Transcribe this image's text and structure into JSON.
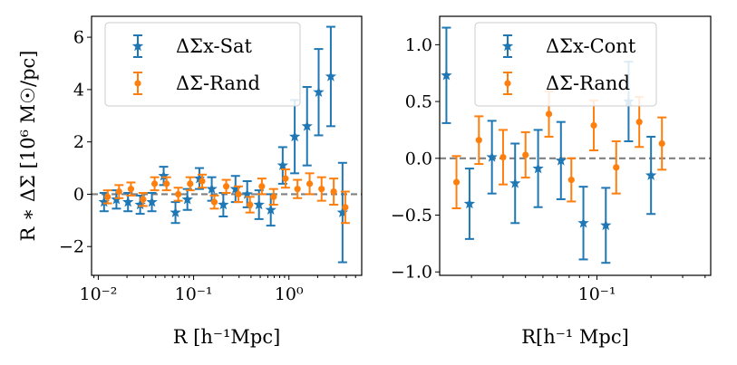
{
  "colors": {
    "sat": "#1f77b4",
    "rand": "#ff7f0e",
    "zero_line": "#808080"
  },
  "chart_data": [
    {
      "type": "scatter",
      "panel": "left",
      "xscale": "log",
      "xlim": [
        0.0085,
        5.8
      ],
      "ylim": [
        -3.1,
        6.8
      ],
      "xticks": [
        0.01,
        0.1,
        1
      ],
      "xtick_labels": [
        "10⁻²",
        "10⁻¹",
        "10⁰"
      ],
      "yticks": [
        -2,
        0,
        2,
        4,
        6
      ],
      "ytick_labels": [
        "−2",
        "0",
        "2",
        "4",
        "6"
      ],
      "xlabel": "R [h⁻¹Mpc]",
      "ylabel": "R ∗ ΔΣ [10⁶ M☉/pc]",
      "legend_location": "top-left",
      "series": [
        {
          "name": "ΔΣx-Sat",
          "marker": "star",
          "color_key": "sat",
          "x": [
            0.0115,
            0.0155,
            0.0205,
            0.0275,
            0.0365,
            0.0485,
            0.0645,
            0.086,
            0.115,
            0.155,
            0.205,
            0.275,
            0.365,
            0.485,
            0.645,
            0.86,
            1.15,
            1.55,
            2.05,
            2.75,
            3.65
          ],
          "y": [
            -0.3,
            -0.2,
            -0.3,
            -0.4,
            -0.3,
            0.7,
            -0.7,
            -0.2,
            0.6,
            0.2,
            -0.4,
            0.2,
            0.0,
            -0.4,
            -0.6,
            1.1,
            2.2,
            2.6,
            3.9,
            4.5,
            -0.7
          ],
          "yerr": [
            0.35,
            0.35,
            0.35,
            0.35,
            0.35,
            0.35,
            0.4,
            0.4,
            0.4,
            0.45,
            0.45,
            0.5,
            0.5,
            0.55,
            0.6,
            0.7,
            1.4,
            1.5,
            1.65,
            1.9,
            1.9
          ]
        },
        {
          "name": "ΔΣ-Rand",
          "marker": "circle",
          "color_key": "rand",
          "x": [
            0.0125,
            0.0165,
            0.022,
            0.0295,
            0.039,
            0.052,
            0.069,
            0.092,
            0.123,
            0.165,
            0.22,
            0.295,
            0.39,
            0.52,
            0.69,
            0.92,
            1.23,
            1.65,
            2.2,
            2.95,
            3.9
          ],
          "y": [
            -0.1,
            0.1,
            0.2,
            -0.2,
            0.4,
            0.4,
            0.0,
            0.4,
            0.5,
            -0.3,
            0.3,
            0.0,
            -0.4,
            0.3,
            -0.1,
            0.6,
            0.2,
            0.4,
            0.2,
            0.1,
            -0.5
          ],
          "yerr": [
            0.25,
            0.25,
            0.25,
            0.25,
            0.25,
            0.25,
            0.25,
            0.25,
            0.25,
            0.25,
            0.25,
            0.3,
            0.3,
            0.3,
            0.3,
            0.35,
            0.35,
            0.4,
            0.45,
            0.5,
            0.6
          ]
        }
      ],
      "reference_line": {
        "y": 0,
        "style": "dashed"
      }
    },
    {
      "type": "scatter",
      "panel": "right",
      "xscale": "log",
      "xlim": [
        0.0133,
        0.43
      ],
      "ylim": [
        -1.03,
        1.25
      ],
      "xticks": [
        0.1
      ],
      "xtick_labels": [
        "10⁻¹"
      ],
      "yticks": [
        -1.0,
        -0.5,
        0.0,
        0.5,
        1.0
      ],
      "ytick_labels": [
        "−1.0",
        "−0.5",
        "0.0",
        "0.5",
        "1.0"
      ],
      "xlabel": "R[h⁻¹ Mpc]",
      "ylabel": "",
      "legend_location": "top-right",
      "series": [
        {
          "name": "ΔΣx-Cont",
          "marker": "star",
          "color_key": "sat",
          "x": [
            0.0145,
            0.0195,
            0.026,
            0.035,
            0.047,
            0.063,
            0.084,
            0.112,
            0.15,
            0.2
          ],
          "y": [
            0.73,
            -0.4,
            0.01,
            -0.22,
            -0.09,
            -0.02,
            -0.57,
            -0.59,
            0.5,
            -0.15
          ],
          "yerr": [
            0.42,
            0.31,
            0.32,
            0.35,
            0.34,
            0.34,
            0.32,
            0.33,
            0.35,
            0.34
          ]
        },
        {
          "name": "ΔΣ-Rand",
          "marker": "circle",
          "color_key": "rand",
          "x": [
            0.0165,
            0.022,
            0.03,
            0.04,
            0.054,
            0.072,
            0.096,
            0.128,
            0.172,
            0.23
          ],
          "y": [
            -0.21,
            0.16,
            0.01,
            0.03,
            0.39,
            -0.19,
            0.29,
            -0.08,
            0.32,
            0.13
          ],
          "yerr": [
            0.23,
            0.21,
            0.24,
            0.2,
            0.2,
            0.19,
            0.22,
            0.23,
            0.22,
            0.23
          ]
        }
      ],
      "reference_line": {
        "y": 0,
        "style": "dashed"
      }
    }
  ]
}
